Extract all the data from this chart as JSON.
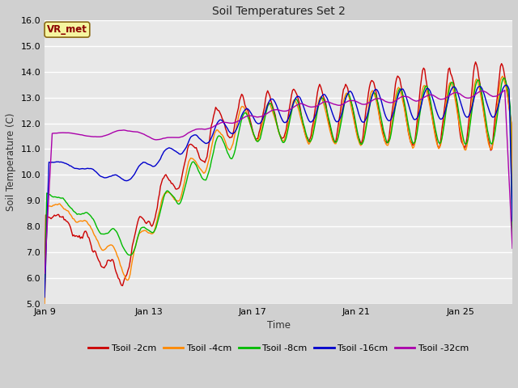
{
  "title": "Soil Temperatures Set 2",
  "xlabel": "Time",
  "ylabel": "Soil Temperature (C)",
  "ylim": [
    5.0,
    16.0
  ],
  "yticks": [
    5.0,
    6.0,
    7.0,
    8.0,
    9.0,
    10.0,
    11.0,
    12.0,
    13.0,
    14.0,
    15.0,
    16.0
  ],
  "xtick_labels": [
    "Jan 9",
    "Jan 13",
    "Jan 17",
    "Jan 21",
    "Jan 25"
  ],
  "tick_positions_days": [
    9,
    13,
    17,
    21,
    25
  ],
  "fig_bg_color": "#d0d0d0",
  "plot_bg_color": "#e8e8e8",
  "grid_color": "#ffffff",
  "vr_met_label": "VR_met",
  "vr_met_bg": "#f5f5a0",
  "vr_met_border": "#8B6914",
  "vr_met_text_color": "#8B0000",
  "series": [
    {
      "label": "Tsoil -2cm",
      "color": "#cc0000"
    },
    {
      "label": "Tsoil -4cm",
      "color": "#ff8800"
    },
    {
      "label": "Tsoil -8cm",
      "color": "#00bb00"
    },
    {
      "label": "Tsoil -16cm",
      "color": "#0000cc"
    },
    {
      "label": "Tsoil -32cm",
      "color": "#aa00aa"
    }
  ]
}
